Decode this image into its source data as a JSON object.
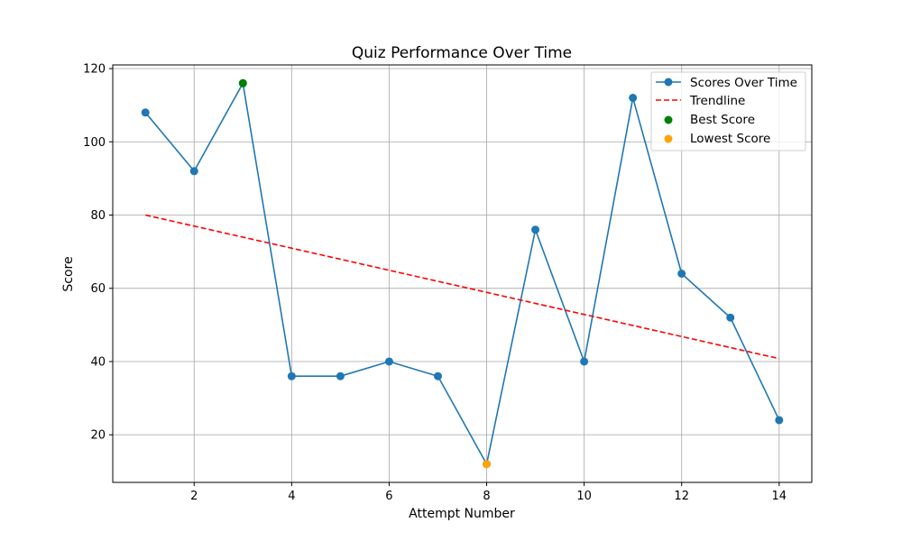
{
  "chart_data": {
    "type": "line",
    "title": "Quiz Performance Over Time",
    "xlabel": "Attempt Number",
    "ylabel": "Score",
    "xlim": [
      0.33,
      14.67
    ],
    "ylim": [
      7,
      121
    ],
    "xticks": [
      2,
      4,
      6,
      8,
      10,
      12,
      14
    ],
    "yticks": [
      20,
      40,
      60,
      80,
      100,
      120
    ],
    "grid": true,
    "legend_position": "top-right",
    "series": [
      {
        "name": "Scores Over Time",
        "style": "line-markers",
        "color": "#1f77b4",
        "x": [
          1,
          2,
          3,
          4,
          5,
          6,
          7,
          8,
          9,
          10,
          11,
          12,
          13,
          14
        ],
        "y": [
          108,
          92,
          116,
          36,
          36,
          40,
          36,
          12,
          76,
          40,
          112,
          64,
          52,
          24
        ]
      },
      {
        "name": "Trendline",
        "style": "dashed",
        "color": "#ff0000",
        "x": [
          1,
          14
        ],
        "y": [
          80,
          40.8
        ]
      },
      {
        "name": "Best Score",
        "style": "marker",
        "color": "#008000",
        "x": [
          3
        ],
        "y": [
          116
        ]
      },
      {
        "name": "Lowest Score",
        "style": "marker",
        "color": "#ffa500",
        "x": [
          8
        ],
        "y": [
          12
        ]
      }
    ]
  }
}
